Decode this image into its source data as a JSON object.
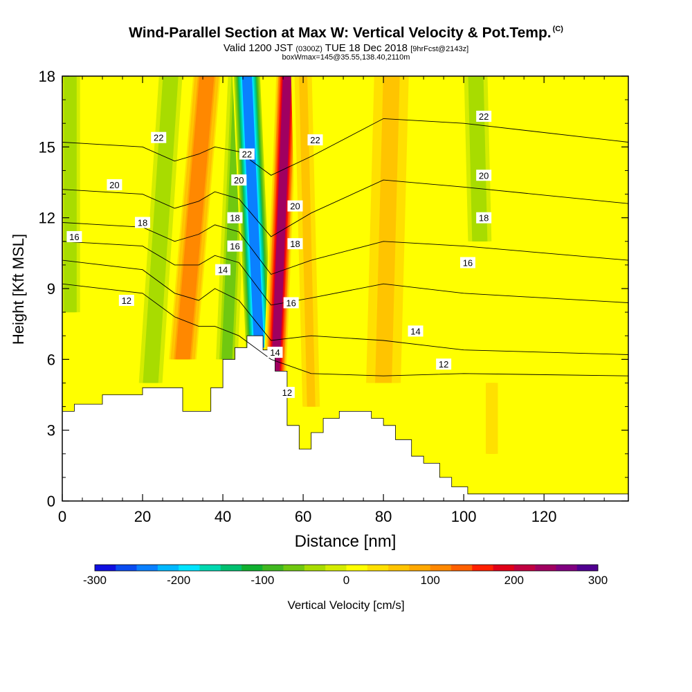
{
  "header": {
    "title": "Wind-Parallel Section at Max W: Vertical Velocity & Pot.Temp.",
    "title_mark": "(C)",
    "valid_prefix": "Valid 1200 JST",
    "valid_utc": "(0300Z)",
    "valid_date": "TUE 18 Dec 2018",
    "forecast": "[9hrFcst@2143z]",
    "box_info": "boxWmax=145@35.55,138.40,2110m"
  },
  "chart_data": {
    "type": "heatmap",
    "xlabel": "Distance [nm]",
    "ylabel": "Height [Kft MSL]",
    "xlim": [
      0,
      141
    ],
    "ylim": [
      0,
      18
    ],
    "x_ticks": [
      0,
      20,
      40,
      60,
      80,
      100,
      120
    ],
    "y_ticks": [
      0,
      3,
      6,
      9,
      12,
      15,
      18
    ],
    "colorbar": {
      "label": "Vertical Velocity [cm/s]",
      "range": [
        -300,
        300
      ],
      "tick_labels": [
        "-300",
        "-200",
        "-100",
        "0",
        "100",
        "200",
        "300"
      ],
      "colors": [
        "#1010e0",
        "#0a4cf0",
        "#0a80ff",
        "#00b8ff",
        "#00e4ff",
        "#00d8b0",
        "#00c070",
        "#10b030",
        "#40b820",
        "#70c810",
        "#a8dc00",
        "#d4ec00",
        "#ffff00",
        "#ffe000",
        "#ffc400",
        "#ffa800",
        "#ff8800",
        "#ff6000",
        "#ff2000",
        "#e00018",
        "#c00040",
        "#a00060",
        "#800080",
        "#500090"
      ]
    },
    "velocity_bands": [
      {
        "x_bottom": 2,
        "x_top": 2,
        "half_width": 2.5,
        "w": -45,
        "y_from": 8,
        "y_to": 18
      },
      {
        "x_bottom": 22,
        "x_top": 27,
        "half_width": 3,
        "w": -55,
        "y_from": 5,
        "y_to": 18
      },
      {
        "x_bottom": 30,
        "x_top": 36,
        "half_width": 3.5,
        "w": 140,
        "y_from": 6,
        "y_to": 18
      },
      {
        "x_bottom": 41,
        "x_top": 44,
        "half_width": 2.5,
        "w": -80,
        "y_from": 6,
        "y_to": 18
      },
      {
        "x_bottom": 49,
        "x_top": 46,
        "half_width": 3,
        "w": -260,
        "y_from": 6.5,
        "y_to": 18
      },
      {
        "x_bottom": 53,
        "x_top": 56,
        "half_width": 2.5,
        "w": 260,
        "y_from": 5,
        "y_to": 18
      },
      {
        "x_bottom": 62,
        "x_top": 60,
        "half_width": 2.5,
        "w": 60,
        "y_from": 4,
        "y_to": 18
      },
      {
        "x_bottom": 80,
        "x_top": 82,
        "half_width": 5,
        "w": 60,
        "y_from": 5,
        "y_to": 18
      },
      {
        "x_bottom": 104,
        "x_top": 103,
        "half_width": 3,
        "w": -55,
        "y_from": 11,
        "y_to": 18
      },
      {
        "x_bottom": 107,
        "x_top": 107,
        "half_width": 2,
        "w": 45,
        "y_from": 2,
        "y_to": 5
      }
    ],
    "terrain": {
      "x": [
        0,
        3,
        3,
        10,
        10,
        20,
        20,
        30,
        30,
        37,
        37,
        40,
        40,
        43,
        43,
        46,
        46,
        50,
        50,
        53,
        53,
        56,
        56,
        59,
        59,
        62,
        62,
        65,
        65,
        69,
        69,
        77,
        77,
        80,
        80,
        83,
        83,
        87,
        87,
        90,
        90,
        94,
        94,
        97,
        97,
        101,
        101,
        141
      ],
      "kft": [
        3.8,
        3.8,
        4.1,
        4.1,
        4.5,
        4.5,
        4.8,
        4.8,
        3.8,
        3.8,
        4.8,
        4.8,
        6.0,
        6.0,
        6.5,
        6.5,
        7.0,
        7.0,
        6.4,
        6.4,
        5.5,
        5.5,
        3.2,
        3.2,
        2.2,
        2.2,
        2.9,
        2.9,
        3.5,
        3.5,
        3.8,
        3.8,
        3.5,
        3.5,
        3.2,
        3.2,
        2.6,
        2.6,
        1.9,
        1.9,
        1.6,
        1.6,
        1.0,
        1.0,
        0.6,
        0.6,
        0.3,
        0.3
      ]
    },
    "isentropes": [
      {
        "level": 12,
        "points": [
          [
            0,
            9.2
          ],
          [
            20,
            8.8
          ],
          [
            28,
            7.8
          ],
          [
            34,
            7.4
          ],
          [
            38,
            7.4
          ],
          [
            44,
            7.0
          ],
          [
            52,
            6.0
          ],
          [
            62,
            5.4
          ],
          [
            80,
            5.3
          ],
          [
            100,
            5.4
          ],
          [
            141,
            5.3
          ]
        ]
      },
      {
        "level": 14,
        "points": [
          [
            0,
            10.2
          ],
          [
            20,
            9.8
          ],
          [
            28,
            8.8
          ],
          [
            34,
            8.5
          ],
          [
            38,
            9.0
          ],
          [
            44,
            8.5
          ],
          [
            52,
            6.8
          ],
          [
            62,
            7.0
          ],
          [
            80,
            6.8
          ],
          [
            100,
            6.4
          ],
          [
            141,
            6.2
          ]
        ]
      },
      {
        "level": 16,
        "points": [
          [
            0,
            11.0
          ],
          [
            20,
            10.8
          ],
          [
            28,
            10.0
          ],
          [
            34,
            10.0
          ],
          [
            38,
            10.4
          ],
          [
            44,
            10.1
          ],
          [
            52,
            8.3
          ],
          [
            62,
            8.6
          ],
          [
            80,
            9.2
          ],
          [
            100,
            8.8
          ],
          [
            141,
            8.4
          ]
        ]
      },
      {
        "level": 18,
        "points": [
          [
            0,
            11.8
          ],
          [
            20,
            11.6
          ],
          [
            28,
            11.0
          ],
          [
            34,
            11.3
          ],
          [
            38,
            11.7
          ],
          [
            44,
            11.4
          ],
          [
            52,
            9.6
          ],
          [
            62,
            10.2
          ],
          [
            80,
            11.0
          ],
          [
            100,
            10.8
          ],
          [
            141,
            10.2
          ]
        ]
      },
      {
        "level": 20,
        "points": [
          [
            0,
            13.2
          ],
          [
            20,
            13.0
          ],
          [
            28,
            12.4
          ],
          [
            34,
            12.7
          ],
          [
            38,
            13.1
          ],
          [
            44,
            12.8
          ],
          [
            52,
            11.2
          ],
          [
            62,
            12.2
          ],
          [
            80,
            13.6
          ],
          [
            100,
            13.3
          ],
          [
            141,
            12.6
          ]
        ]
      },
      {
        "level": 22,
        "points": [
          [
            0,
            15.2
          ],
          [
            20,
            15.0
          ],
          [
            28,
            14.4
          ],
          [
            34,
            14.7
          ],
          [
            38,
            15.0
          ],
          [
            44,
            14.8
          ],
          [
            52,
            13.8
          ],
          [
            62,
            14.6
          ],
          [
            80,
            16.2
          ],
          [
            100,
            16.0
          ],
          [
            141,
            15.2
          ]
        ]
      }
    ],
    "contour_labels": [
      {
        "text": "12",
        "x": 16,
        "y": 8.5
      },
      {
        "text": "14",
        "x": 40,
        "y": 9.8
      },
      {
        "text": "16",
        "x": 3,
        "y": 11.2
      },
      {
        "text": "16",
        "x": 43,
        "y": 10.8
      },
      {
        "text": "16",
        "x": 57,
        "y": 8.4
      },
      {
        "text": "16",
        "x": 101,
        "y": 10.1
      },
      {
        "text": "18",
        "x": 20,
        "y": 11.8
      },
      {
        "text": "18",
        "x": 43,
        "y": 12.0
      },
      {
        "text": "18",
        "x": 58,
        "y": 10.9
      },
      {
        "text": "18",
        "x": 105,
        "y": 12.0
      },
      {
        "text": "20",
        "x": 13,
        "y": 13.4
      },
      {
        "text": "20",
        "x": 44,
        "y": 13.6
      },
      {
        "text": "20",
        "x": 58,
        "y": 12.5
      },
      {
        "text": "20",
        "x": 105,
        "y": 13.8
      },
      {
        "text": "22",
        "x": 24,
        "y": 15.4
      },
      {
        "text": "22",
        "x": 46,
        "y": 14.7
      },
      {
        "text": "22",
        "x": 63,
        "y": 15.3
      },
      {
        "text": "22",
        "x": 105,
        "y": 16.3
      },
      {
        "text": "14",
        "x": 53,
        "y": 6.3
      },
      {
        "text": "14",
        "x": 88,
        "y": 7.2
      },
      {
        "text": "12",
        "x": 56,
        "y": 4.6
      },
      {
        "text": "12",
        "x": 95,
        "y": 5.8
      }
    ]
  }
}
